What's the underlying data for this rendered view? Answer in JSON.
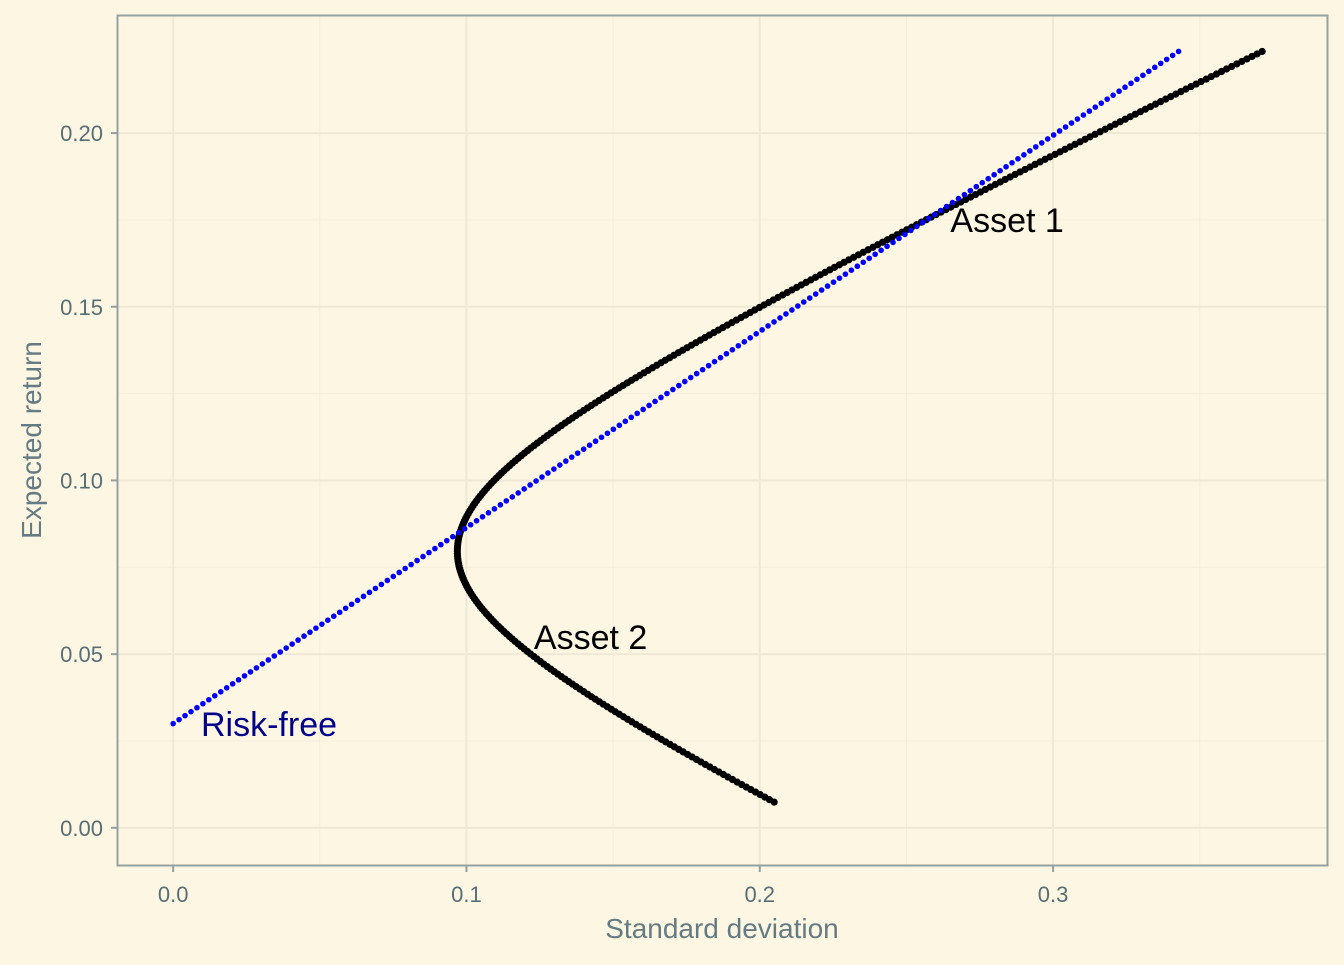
{
  "theme": {
    "background": "#fdf6e3",
    "panel_border": "#93a1a1",
    "grid_major": "#eee8d5",
    "grid_minor": "#f4eedc",
    "axis_text": "#586e75",
    "axis_title": "#657b83"
  },
  "chart_data": {
    "type": "scatter",
    "title": "",
    "xlabel": "Standard deviation",
    "ylabel": "Expected return",
    "xlim": [
      -0.0188,
      0.3934
    ],
    "ylim": [
      -0.0107,
      0.2337
    ],
    "x_ticks": [
      0.0,
      0.1,
      0.2,
      0.3
    ],
    "x_tick_labels": [
      "0.0",
      "0.1",
      "0.2",
      "0.3"
    ],
    "y_ticks": [
      0.0,
      0.05,
      0.1,
      0.15,
      0.2
    ],
    "y_tick_labels": [
      "0.00",
      "0.05",
      "0.10",
      "0.15",
      "0.20"
    ],
    "grid": true,
    "series": [
      {
        "kind": "frontier",
        "color": "#000000",
        "r1": 0.0074,
        "r2": 0.2235,
        "min_sd": 0.0969,
        "min_sd_return": 0.0796,
        "end_low_sd": 0.2049,
        "end_high_sd": 0.3713,
        "n_points": 300
      },
      {
        "kind": "capital-market-line",
        "color": "#0000ff",
        "x_start": 0.0,
        "y_start": 0.03,
        "x_end": 0.3428,
        "y_end": 0.2235,
        "n_points": 170
      }
    ],
    "annotations": [
      {
        "text": "Asset 1",
        "x": 0.265,
        "y": 0.1715,
        "color": "#000000"
      },
      {
        "text": "Asset 2",
        "x": 0.123,
        "y": 0.0515,
        "color": "#000000"
      },
      {
        "text": "Risk-free",
        "x": 0.0095,
        "y": 0.0265,
        "color": "#00008b"
      }
    ]
  }
}
